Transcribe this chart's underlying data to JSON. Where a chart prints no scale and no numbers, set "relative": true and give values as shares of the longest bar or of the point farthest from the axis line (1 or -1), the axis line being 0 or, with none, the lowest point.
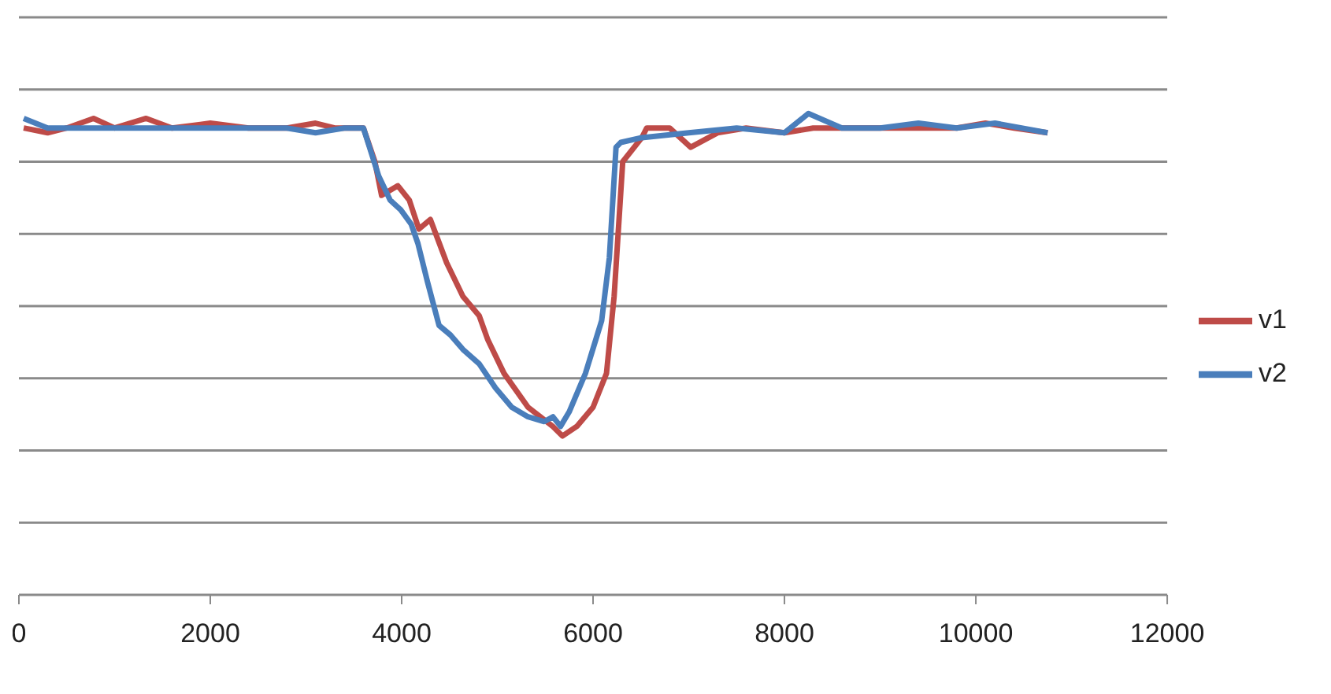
{
  "chart_data": {
    "type": "line",
    "relative": true,
    "xlim": [
      0,
      12000
    ],
    "xticks": [
      0,
      2000,
      4000,
      6000,
      8000,
      10000,
      12000
    ],
    "grid": "y",
    "legend": "right",
    "marker": "none",
    "line_style": "solid",
    "series": [
      {
        "name": "v1",
        "color": "#be4b48",
        "x": [
          50,
          300,
          500,
          780,
          1000,
          1330,
          1600,
          2000,
          2400,
          2800,
          3100,
          3300,
          3600,
          3720,
          3790,
          3960,
          4080,
          4180,
          4300,
          4470,
          4640,
          4810,
          4900,
          5070,
          5320,
          5580,
          5680,
          5830,
          6000,
          6140,
          6220,
          6310,
          6390,
          6510,
          6560,
          6800,
          7020,
          7300,
          7600,
          8000,
          8300,
          8600,
          9000,
          9400,
          9800,
          10100,
          10400,
          10750
        ],
        "values": [
          0.97,
          0.96,
          0.97,
          0.99,
          0.97,
          0.99,
          0.97,
          0.98,
          0.97,
          0.97,
          0.98,
          0.97,
          0.97,
          0.9,
          0.83,
          0.85,
          0.82,
          0.76,
          0.78,
          0.69,
          0.62,
          0.58,
          0.53,
          0.46,
          0.39,
          0.35,
          0.33,
          0.35,
          0.39,
          0.46,
          0.62,
          0.9,
          0.92,
          0.95,
          0.97,
          0.97,
          0.93,
          0.96,
          0.97,
          0.96,
          0.97,
          0.97,
          0.97,
          0.97,
          0.97,
          0.98,
          0.97,
          0.96
        ]
      },
      {
        "name": "v2",
        "color": "#4a7ebb",
        "x": [
          50,
          300,
          600,
          1000,
          1300,
          1700,
          2000,
          2400,
          2800,
          3100,
          3400,
          3600,
          3760,
          3880,
          3990,
          4100,
          4170,
          4270,
          4390,
          4510,
          4640,
          4810,
          4980,
          5150,
          5320,
          5490,
          5580,
          5660,
          5750,
          5920,
          6090,
          6170,
          6240,
          6290,
          6510,
          7000,
          7500,
          8000,
          8250,
          8600,
          9000,
          9400,
          9800,
          10200,
          10750
        ],
        "values": [
          0.99,
          0.97,
          0.97,
          0.97,
          0.97,
          0.97,
          0.97,
          0.97,
          0.97,
          0.96,
          0.97,
          0.97,
          0.87,
          0.82,
          0.8,
          0.77,
          0.73,
          0.65,
          0.56,
          0.54,
          0.51,
          0.48,
          0.43,
          0.39,
          0.37,
          0.36,
          0.37,
          0.35,
          0.38,
          0.46,
          0.57,
          0.7,
          0.93,
          0.94,
          0.95,
          0.96,
          0.97,
          0.96,
          1.0,
          0.97,
          0.97,
          0.98,
          0.97,
          0.98,
          0.96
        ]
      }
    ]
  }
}
